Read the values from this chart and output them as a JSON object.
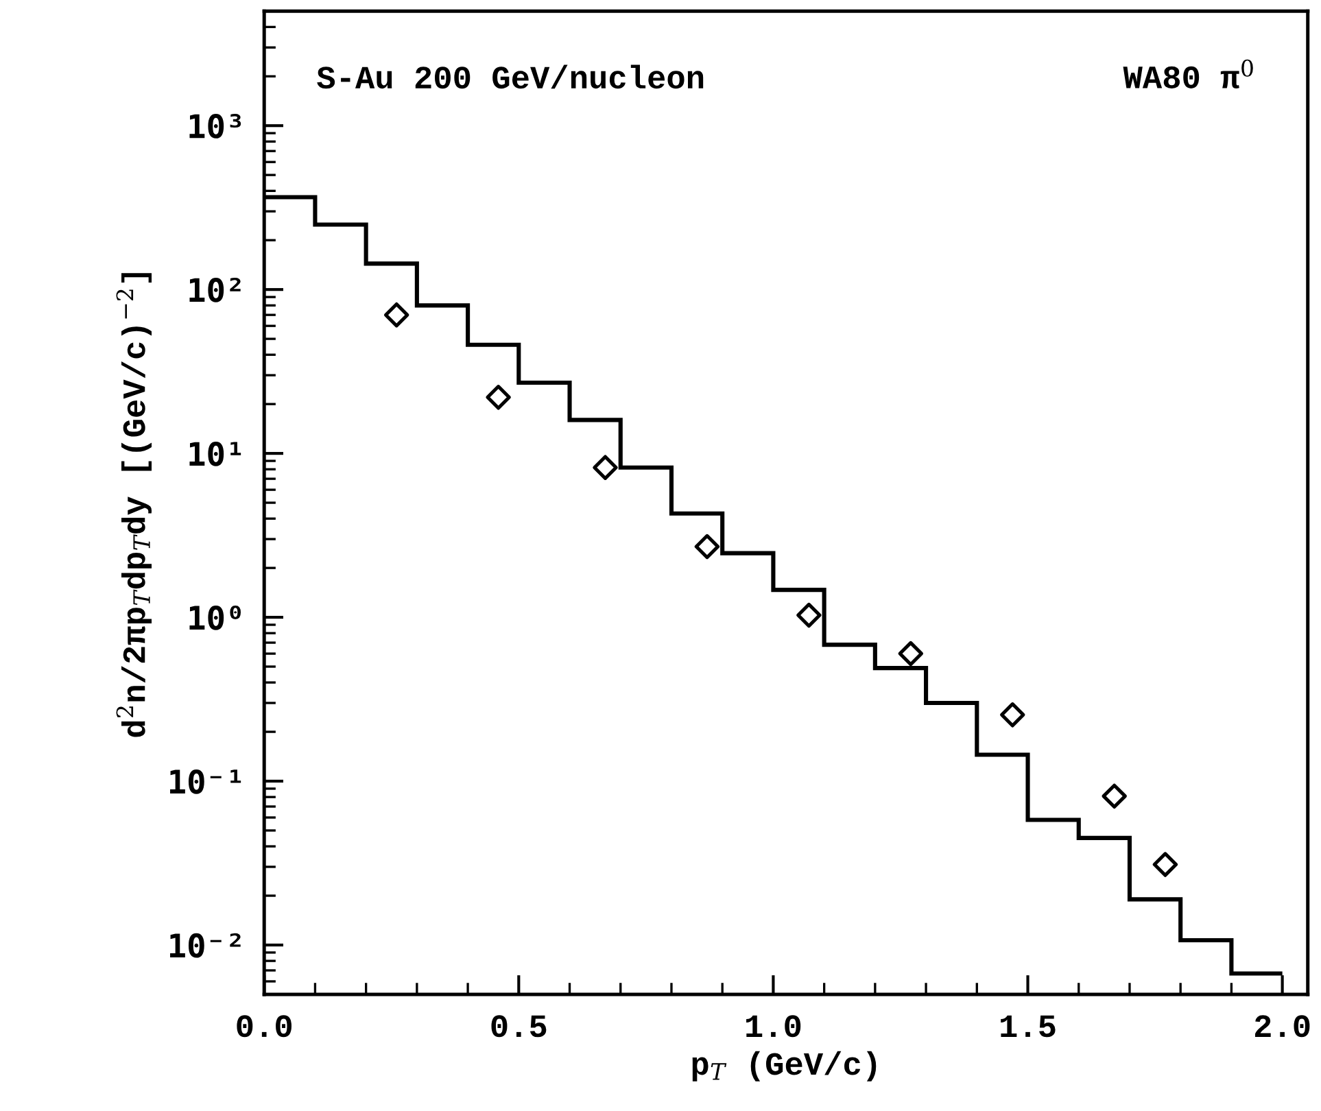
{
  "chart_data": {
    "type": "histogram",
    "xlabel": "p$_{T}$ (GeV/c)",
    "ylabel": "d$^{2}$n/2πp$_{T}$dp$_{T}$dy [(GeV/c)$^{−2}$]",
    "annotations": [
      "S-Au 200 GeV/nucleon",
      "WA80 π$^{0}$"
    ],
    "bins": [
      0.0,
      0.1,
      0.2,
      0.3,
      0.4,
      0.5,
      0.6,
      0.7,
      0.8,
      0.9,
      1.0,
      1.1,
      1.2,
      1.3,
      1.4,
      1.5,
      1.6,
      1.7,
      1.8,
      1.9,
      2.0
    ],
    "values": [
      366,
      249,
      144,
      80,
      46,
      27,
      16,
      8.2,
      4.3,
      2.46,
      1.47,
      0.68,
      0.49,
      0.3,
      0.145,
      0.058,
      0.045,
      0.019,
      0.0107,
      0.0067
    ],
    "color": "#000000",
    "series": [
      {
        "type": "scatter",
        "color": "#000000",
        "x": [
          0.26,
          0.46,
          0.67,
          0.87,
          1.07,
          1.27,
          1.47,
          1.67,
          1.77
        ],
        "values": [
          70,
          22,
          8.2,
          2.7,
          1.03,
          0.6,
          0.254,
          0.081,
          0.031
        ]
      }
    ],
    "marker": "diamond",
    "log": "y",
    "xlim": [
      0.0,
      2.05
    ],
    "xticks": [
      {
        "value": 0.0,
        "label": "0.0"
      },
      0.5,
      {
        "value": 1.0,
        "label": "1.0"
      },
      1.5,
      {
        "value": 2.0,
        "label": "2.0"
      }
    ],
    "ylim": [
      0.005,
      5000
    ],
    "yticks": [
      {
        "value": 0.01,
        "label": "10⁻²"
      },
      {
        "value": 0.1,
        "label": "10⁻¹"
      },
      {
        "value": 1,
        "label": "10⁰"
      },
      {
        "value": 10,
        "label": "10¹"
      },
      {
        "value": 100,
        "label": "10²"
      },
      {
        "value": 1000,
        "label": "10³"
      }
    ],
    "grid": false
  }
}
